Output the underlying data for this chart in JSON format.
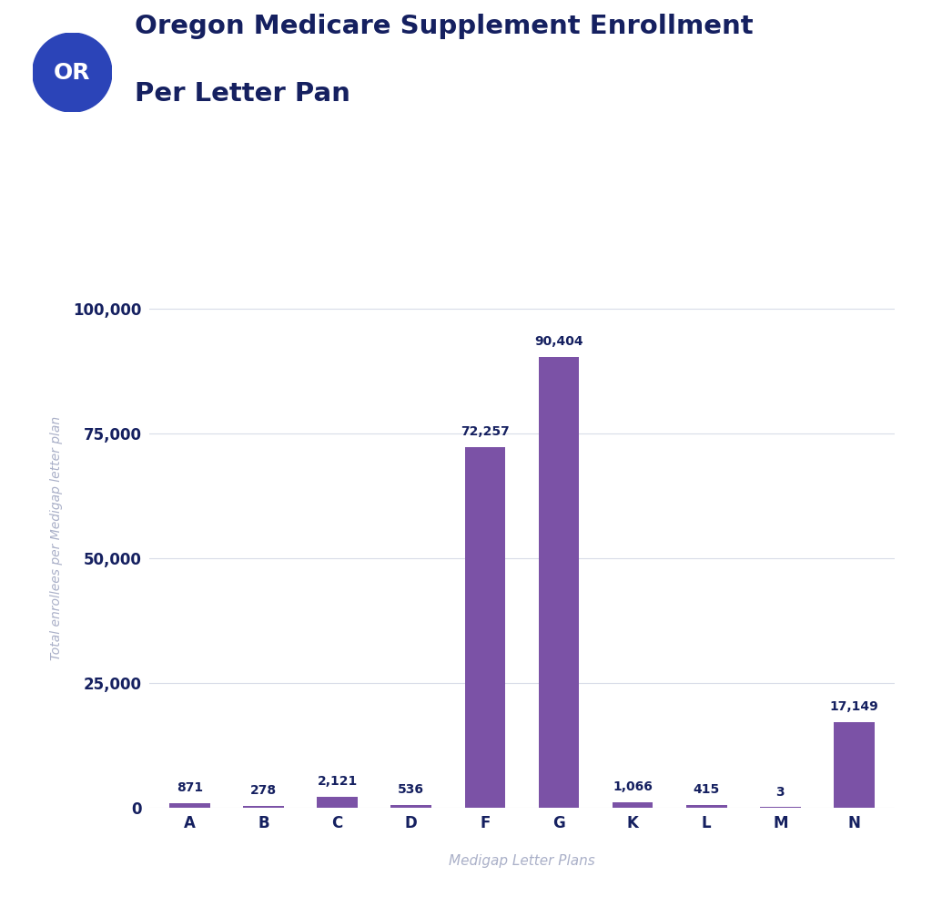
{
  "title_line1": "Oregon Medicare Supplement Enrollment",
  "title_line2": "Per Letter Pan",
  "categories": [
    "A",
    "B",
    "C",
    "D",
    "F",
    "G",
    "K",
    "L",
    "M",
    "N"
  ],
  "values": [
    871,
    278,
    2121,
    536,
    72257,
    90404,
    1066,
    415,
    3,
    17149
  ],
  "bar_labels": [
    "871",
    "278",
    "2,121",
    "536",
    "72,257",
    "90,404",
    "1,066",
    "415",
    "3",
    "17,149"
  ],
  "bar_color": "#7b52a6",
  "xlabel": "Medigap Letter Plans",
  "ylabel": "Total enrollees per Medigap letter plan",
  "ylim": [
    0,
    108000
  ],
  "yticks": [
    0,
    25000,
    50000,
    75000,
    100000
  ],
  "ytick_labels": [
    "0",
    "25,000",
    "50,000",
    "75,000",
    "100,000"
  ],
  "background_color": "#ffffff",
  "grid_color": "#d8dce8",
  "title_color": "#152060",
  "ylabel_color": "#aab0c8",
  "xlabel_color": "#aab0c8",
  "label_color": "#152060",
  "badge_color": "#2b44b8",
  "badge_text": "OR",
  "badge_text_color": "#ffffff",
  "title_fontsize": 21,
  "bar_label_fontsize": 10,
  "tick_fontsize": 12,
  "ylabel_fontsize": 10,
  "xlabel_fontsize": 11
}
